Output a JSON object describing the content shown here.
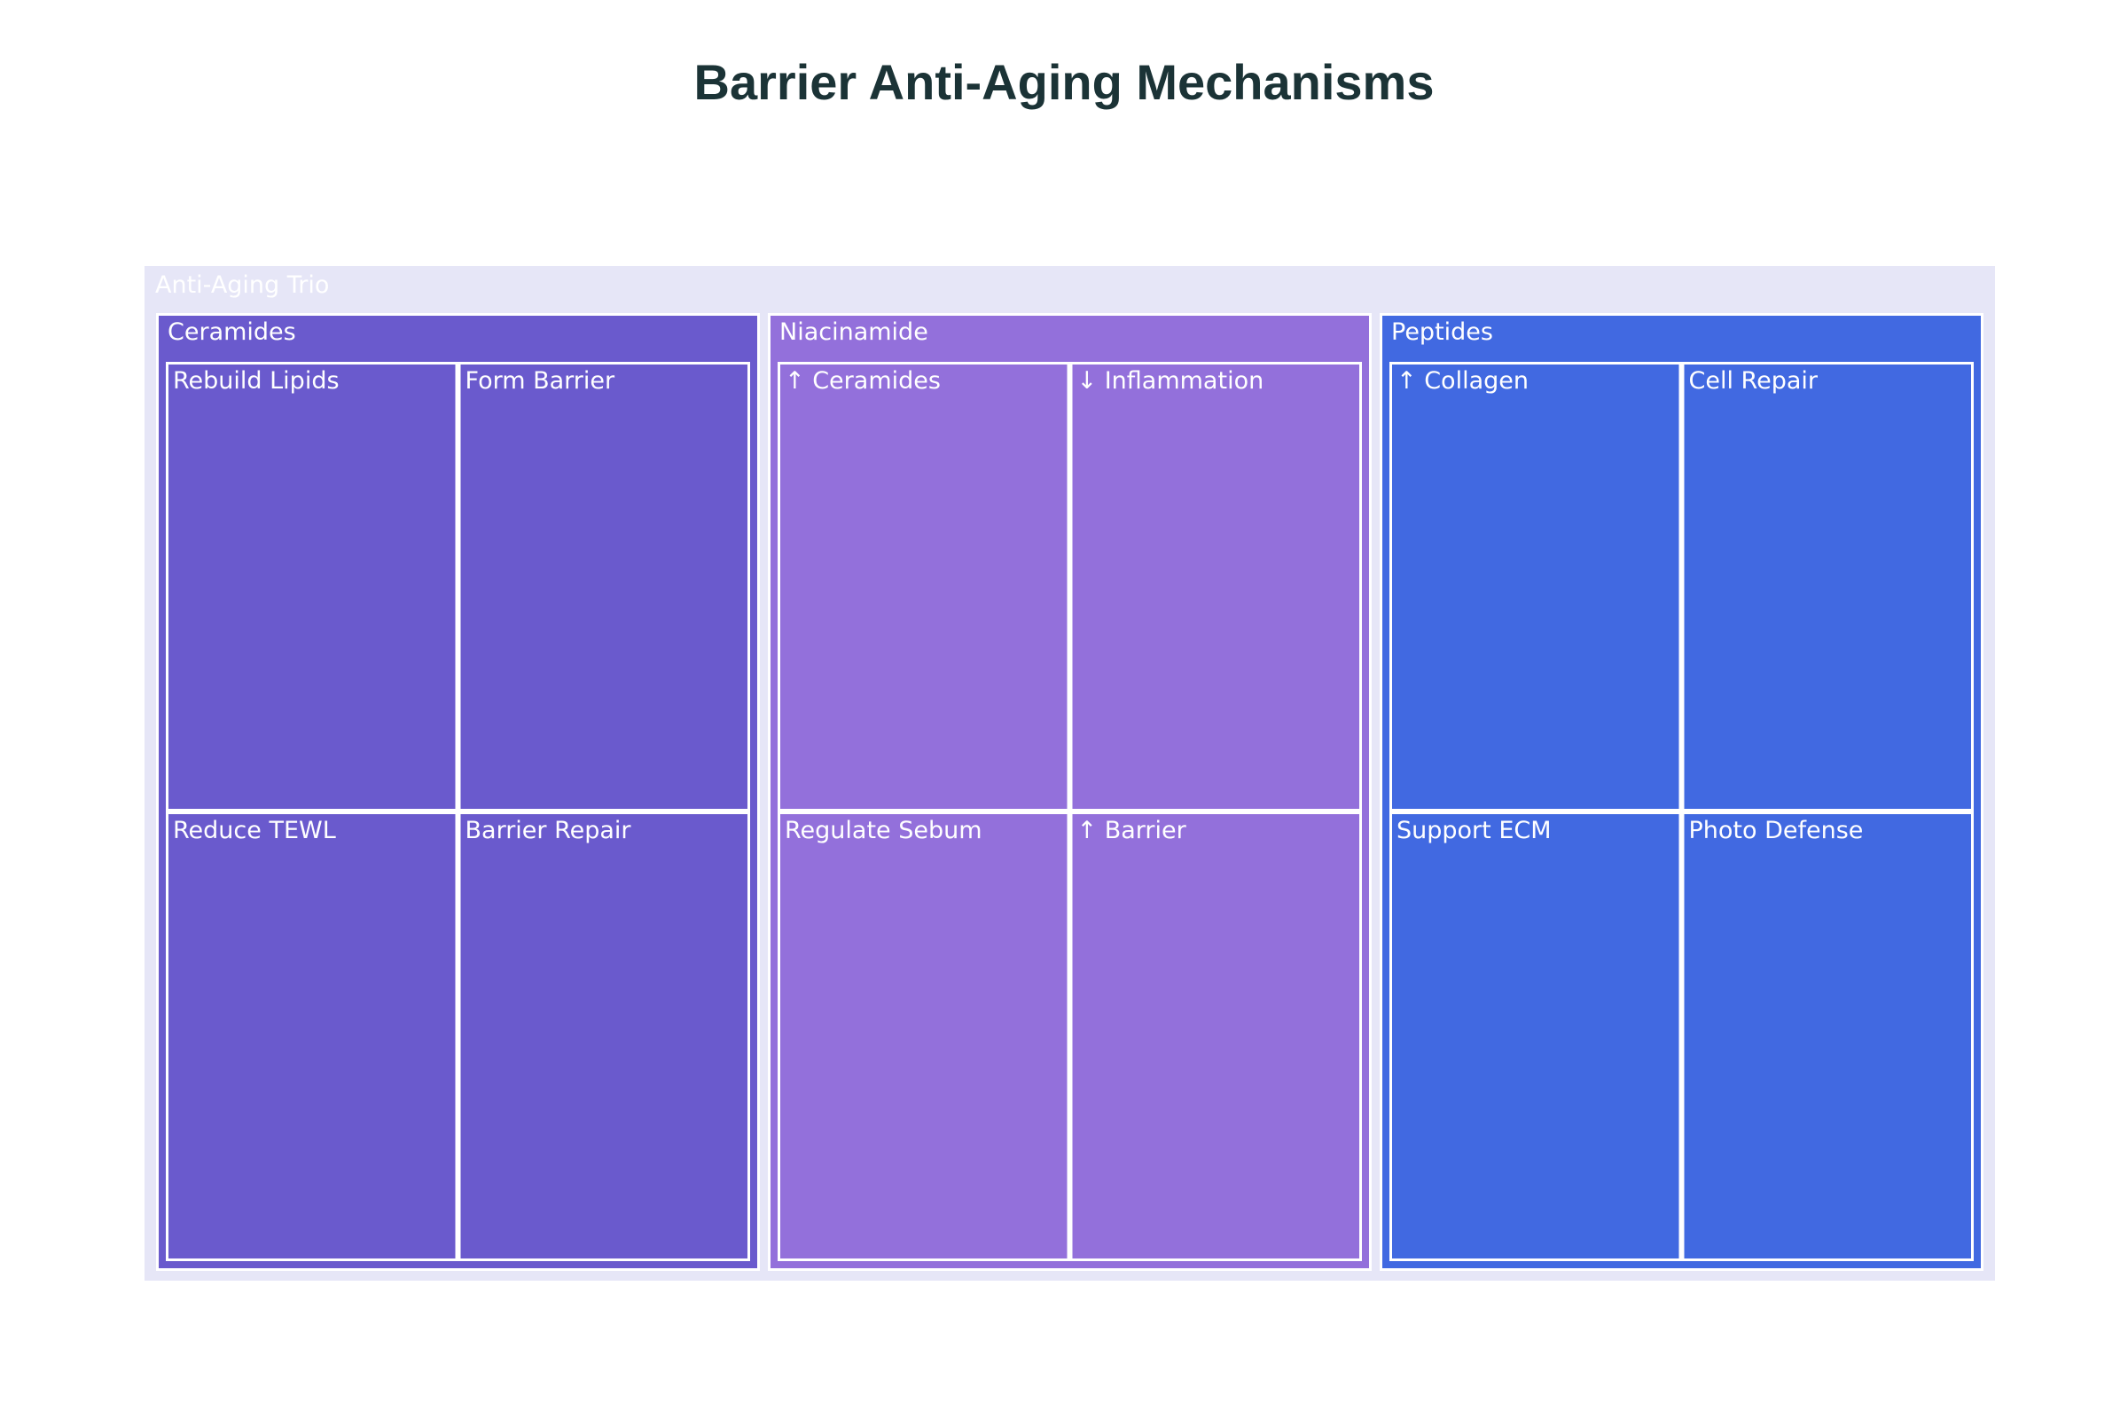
{
  "chart_data": {
    "type": "treemap",
    "title": "Barrier Anti-Aging Mechanisms",
    "root": {
      "label": "Anti-Aging Trio",
      "color": "#e6e6f7",
      "children": [
        {
          "label": "Ceramides",
          "color": "#6a5acd",
          "children": [
            {
              "label": "Rebuild Lipids",
              "value": 1
            },
            {
              "label": "Form Barrier",
              "value": 1
            },
            {
              "label": "Reduce TEWL",
              "value": 1
            },
            {
              "label": "Barrier Repair",
              "value": 1
            }
          ]
        },
        {
          "label": "Niacinamide",
          "color": "#9370db",
          "children": [
            {
              "label": "↑ Ceramides",
              "value": 1
            },
            {
              "label": "↓ Inflammation",
              "value": 1
            },
            {
              "label": "Regulate Sebum",
              "value": 1
            },
            {
              "label": "↑ Barrier",
              "value": 1
            }
          ]
        },
        {
          "label": "Peptides",
          "color": "#4169e1",
          "children": [
            {
              "label": "↑ Collagen",
              "value": 1
            },
            {
              "label": "Cell Repair",
              "value": 1
            },
            {
              "label": "Support ECM",
              "value": 1
            },
            {
              "label": "Photo Defense",
              "value": 1
            }
          ]
        }
      ]
    }
  }
}
